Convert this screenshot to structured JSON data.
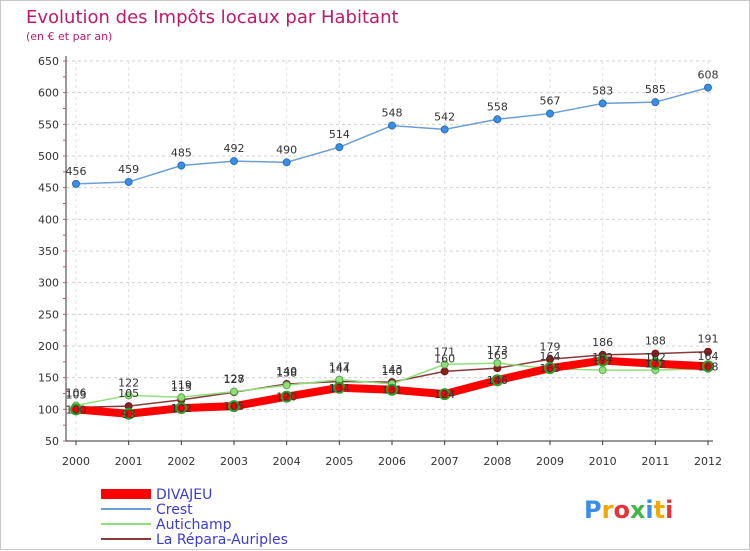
{
  "chart_data": {
    "type": "line",
    "title": "Evolution des Impôts locaux par Habitant",
    "subtitle": "(en € et par an)",
    "xlabel": "",
    "ylabel": "",
    "x": [
      "2000",
      "2001",
      "2002",
      "2003",
      "2004",
      "2005",
      "2006",
      "2007",
      "2008",
      "2009",
      "2010",
      "2011",
      "2012"
    ],
    "yticks": [
      50,
      100,
      150,
      200,
      250,
      300,
      350,
      400,
      450,
      500,
      550,
      600,
      650
    ],
    "ylim": [
      50,
      650
    ],
    "grid": "horizontal-dashed",
    "legend_position": "bottom-left",
    "series": [
      {
        "name": "DIVAJEU",
        "color": "#ff0000",
        "values": [
          100,
          93,
          102,
          105,
          120,
          134,
          131,
          124,
          146,
          165,
          177,
          172,
          168
        ],
        "labels": [
          "100",
          "93",
          "102",
          "105",
          "120",
          "134",
          "131",
          "124",
          "146",
          "165",
          "177",
          "172",
          "168"
        ]
      },
      {
        "name": "Crest",
        "color": "#6a9fd4",
        "values": [
          456,
          459,
          485,
          492,
          490,
          514,
          548,
          542,
          558,
          567,
          583,
          585,
          608
        ],
        "labels": [
          "456",
          "459",
          "485",
          "492",
          "490",
          "514",
          "548",
          "542",
          "558",
          "567",
          "583",
          "585",
          "608"
        ]
      },
      {
        "name": "Autichamp",
        "color": "#8fe07a",
        "values": [
          106,
          122,
          119,
          128,
          138,
          147,
          140,
          171,
          173,
          164,
          162,
          162,
          164
        ],
        "labels": [
          "106",
          "122",
          "119",
          "128",
          "138",
          "147",
          "140",
          "171",
          "173",
          "164",
          "162",
          "162",
          "164"
        ]
      },
      {
        "name": "La Répara-Auriples",
        "color": "#8b3a3a",
        "values": [
          103,
          105,
          115,
          127,
          140,
          144,
          143,
          160,
          165,
          179,
          186,
          188,
          191
        ],
        "labels": [
          "103",
          "105",
          "115",
          "127",
          "140",
          "144",
          "143",
          "160",
          "165",
          "179",
          "186",
          "188",
          "191"
        ]
      }
    ]
  },
  "logo": {
    "text": "Proxiti",
    "letters": [
      "P",
      "r",
      "o",
      "x",
      "i",
      "t",
      "i"
    ],
    "colors": [
      "#3a8ee6",
      "#f2a900",
      "#e5353b",
      "#44b548",
      "#3a8ee6",
      "#f2a900",
      "#e5353b"
    ]
  }
}
